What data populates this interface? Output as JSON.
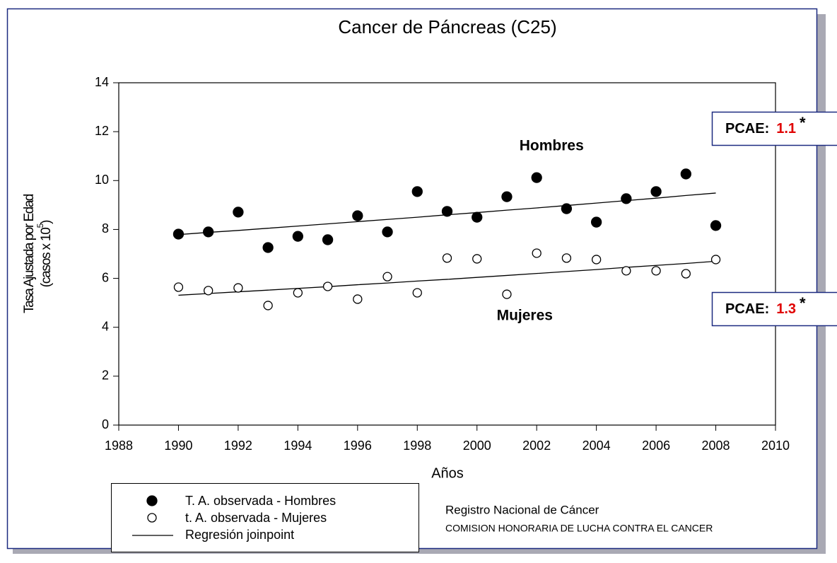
{
  "chart_data": {
    "type": "scatter",
    "title": "Cancer de Páncreas (C25)",
    "x_label": "Años",
    "y_label": "Tasa Ajustada por Edad",
    "y_label_unit": {
      "before": "(casos x 10",
      "sup": "5",
      "after": ")"
    },
    "x": [
      1990,
      1991,
      1992,
      1993,
      1994,
      1995,
      1996,
      1997,
      1998,
      1999,
      2000,
      2001,
      2002,
      2003,
      2004,
      2005,
      2006,
      2007,
      2008
    ],
    "series": [
      {
        "name": "T. A. observada - Hombres",
        "color": "#000000",
        "marker": "filled",
        "values": [
          7.81,
          7.9,
          8.71,
          7.26,
          7.72,
          7.58,
          8.56,
          7.9,
          9.55,
          8.74,
          8.5,
          9.34,
          10.12,
          8.85,
          8.3,
          9.26,
          9.55,
          10.27,
          8.16
        ]
      },
      {
        "name": "t. A. observada - Mujeres",
        "color": "#000000",
        "marker": "open",
        "values": [
          5.64,
          5.5,
          5.61,
          4.89,
          5.41,
          5.67,
          5.15,
          6.07,
          5.41,
          6.83,
          6.8,
          5.35,
          7.03,
          6.83,
          6.77,
          6.31,
          6.31,
          6.19,
          6.77
        ]
      }
    ],
    "regression": {
      "name": "Regresión joinpoint",
      "color": "#000000",
      "lines": [
        {
          "values": [
            7.79,
            7.88,
            7.96,
            8.05,
            8.14,
            8.23,
            8.32,
            8.41,
            8.5,
            8.6,
            8.69,
            8.79,
            8.88,
            8.98,
            9.08,
            9.18,
            9.28,
            9.39,
            9.49
          ]
        },
        {
          "values": [
            5.31,
            5.38,
            5.45,
            5.52,
            5.59,
            5.66,
            5.74,
            5.81,
            5.89,
            5.96,
            6.04,
            6.12,
            6.2,
            6.28,
            6.36,
            6.45,
            6.53,
            6.61,
            6.7
          ]
        }
      ]
    },
    "xlim": [
      1988,
      2010
    ],
    "xticks": [
      1988,
      1990,
      1992,
      1994,
      1996,
      1998,
      2000,
      2002,
      2004,
      2006,
      2008,
      2010
    ],
    "ylim": [
      0,
      14
    ],
    "yticks": [
      0,
      2,
      4,
      6,
      8,
      10,
      12,
      14
    ],
    "annotations": [
      {
        "text": "Hombres",
        "x": 2002.5,
        "y": 11.4
      },
      {
        "text": "Mujeres",
        "x": 2001.6,
        "y": 4.45
      }
    ],
    "pcae": [
      {
        "label": "PCAE:",
        "value": 1.1,
        "mark": "*"
      },
      {
        "label": "PCAE:",
        "value": 1.3,
        "mark": "*"
      }
    ],
    "source": [
      "Registro Nacional de Cáncer",
      "COMISION HONORARIA DE LUCHA CONTRA EL CANCER"
    ]
  }
}
